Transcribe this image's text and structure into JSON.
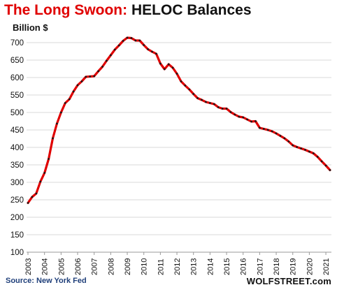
{
  "header": {
    "title_red": "The Long Swoon:",
    "title_black": "HELOC Balances",
    "unit_label": "Billion $"
  },
  "footer": {
    "source": "Source: New York Fed",
    "brand": "WOLFSTREET.com"
  },
  "colors": {
    "line": "#e00000",
    "marker": "#1a1a1a",
    "grid": "#d9d9d9",
    "axis": "#999999"
  },
  "chart_data": {
    "type": "line",
    "title": "The Long Swoon: HELOC Balances",
    "ylabel": "Billion $",
    "xlabel": "",
    "ylim": [
      100,
      700
    ],
    "yticks": [
      100,
      150,
      200,
      250,
      300,
      350,
      400,
      450,
      500,
      550,
      600,
      650,
      700
    ],
    "xlim": [
      2003,
      2021.25
    ],
    "xticks": [
      "2003",
      "2004",
      "2005",
      "2006",
      "2007",
      "2008",
      "2009",
      "2010",
      "2011",
      "2012",
      "2013",
      "2014",
      "2015",
      "2016",
      "2017",
      "2018",
      "2019",
      "2020",
      "2021"
    ],
    "grid": true,
    "series": [
      {
        "x": [
          2003.0,
          2003.25,
          2003.5,
          2003.75,
          2004.0,
          2004.25,
          2004.5,
          2004.75,
          2005.0,
          2005.25,
          2005.5,
          2005.75,
          2006.0,
          2006.25,
          2006.5,
          2006.75,
          2007.0,
          2007.25,
          2007.5,
          2007.75,
          2008.0,
          2008.25,
          2008.5,
          2008.75,
          2009.0,
          2009.25,
          2009.5,
          2009.75,
          2010.0,
          2010.25,
          2010.5,
          2010.75,
          2011.0,
          2011.25,
          2011.5,
          2011.75,
          2012.0,
          2012.25,
          2012.5,
          2012.75,
          2013.0,
          2013.25,
          2013.5,
          2013.75,
          2014.0,
          2014.25,
          2014.5,
          2014.75,
          2015.0,
          2015.25,
          2015.5,
          2015.75,
          2016.0,
          2016.25,
          2016.5,
          2016.75,
          2017.0,
          2017.25,
          2017.5,
          2017.75,
          2018.0,
          2018.25,
          2018.5,
          2018.75,
          2019.0,
          2019.25,
          2019.5,
          2019.75,
          2020.0,
          2020.25,
          2020.5,
          2020.75,
          2021.0,
          2021.25
        ],
        "values": [
          241,
          258,
          268,
          302,
          327,
          367,
          426,
          468,
          500,
          527,
          538,
          560,
          578,
          589,
          602,
          603,
          604,
          618,
          631,
          648,
          664,
          680,
          692,
          705,
          714,
          713,
          706,
          706,
          693,
          681,
          674,
          668,
          640,
          624,
          638,
          628,
          611,
          589,
          577,
          566,
          553,
          541,
          536,
          530,
          527,
          524,
          515,
          511,
          511,
          501,
          494,
          488,
          486,
          480,
          474,
          475,
          456,
          453,
          450,
          446,
          440,
          433,
          426,
          417,
          406,
          401,
          397,
          393,
          388,
          383,
          373,
          360,
          348,
          335
        ]
      }
    ]
  }
}
